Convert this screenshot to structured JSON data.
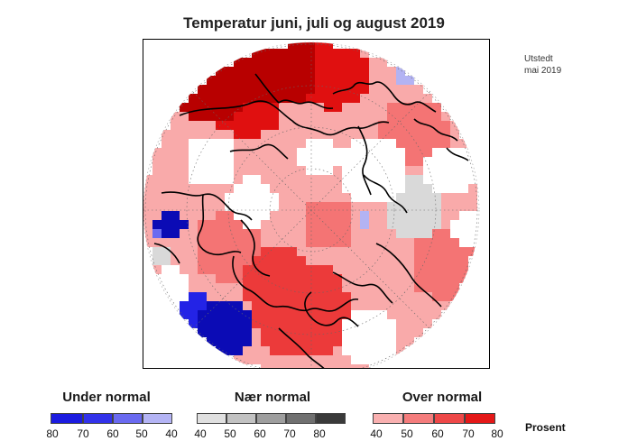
{
  "title": "Temperatur juni, juli og august 2019",
  "issued": [
    "Utstedt",
    "mai 2019"
  ],
  "map": {
    "projection": "polar stereographic, north pole",
    "colors": {
      "below": [
        "#b3b3f3",
        "#6b6bf0",
        "#2323e6",
        "#0b0bb5"
      ],
      "near": [
        "#d9d9d9",
        "#bcbcbc",
        "#9b9b9b",
        "#6e6e6e",
        "#3b3b3b"
      ],
      "above": [
        "#f9aaaa",
        "#f47474",
        "#ec3a3a",
        "#e01010",
        "#b80000"
      ]
    }
  },
  "legend": {
    "below": {
      "title": "Under normal",
      "ticks": [
        "80",
        "70",
        "60",
        "50",
        "40"
      ],
      "colors": [
        "#0a0ab8",
        "#1c1ce0",
        "#3232ea",
        "#6a6af0",
        "#b4b4f5"
      ]
    },
    "near": {
      "title": "Nær normal",
      "ticks": [
        "40",
        "50",
        "60",
        "70",
        "80"
      ],
      "colors": [
        "#e0e0e0",
        "#c2c2c2",
        "#9e9e9e",
        "#707070",
        "#3a3a3a"
      ]
    },
    "above": {
      "title": "Over normal",
      "ticks": [
        "40",
        "50",
        "60",
        "70",
        "80"
      ],
      "colors": [
        "#f9b0b0",
        "#f47c7c",
        "#ee4848",
        "#e41818",
        "#c00000"
      ]
    },
    "unit": "Prosent"
  }
}
